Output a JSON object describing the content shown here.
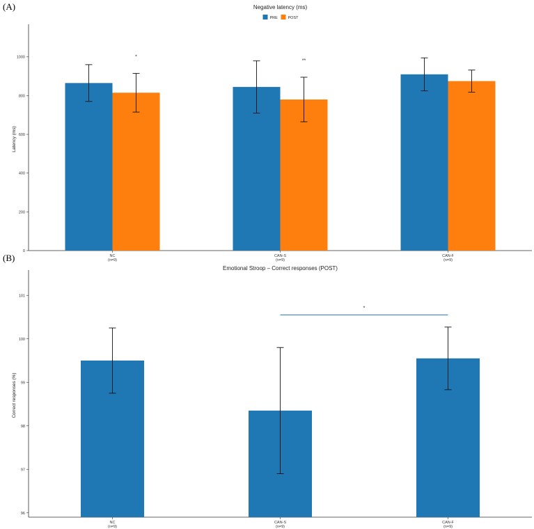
{
  "panel_a_label": "(A)",
  "panel_b_label": "(B)",
  "chart_data": [
    {
      "type": "bar",
      "title": "Negative latency (ms)",
      "xlabel": "",
      "ylabel": "Latency (ms)",
      "ylim": [
        0,
        1150
      ],
      "yticks": [
        0,
        200,
        400,
        600,
        800,
        1000
      ],
      "categories": [
        "NC\n(n=9)",
        "CAN-S\n(n=9)",
        "CAN-F\n(n=9)"
      ],
      "series": [
        {
          "name": "PRE",
          "color": "#1f77b4",
          "values": [
            865,
            845,
            910
          ],
          "error": [
            95,
            135,
            85
          ]
        },
        {
          "name": "POST",
          "color": "#ff7f0e",
          "values": [
            815,
            780,
            875
          ],
          "error": [
            100,
            115,
            57
          ]
        }
      ],
      "annotations": [
        {
          "category": 0,
          "series": "POST",
          "text": "*"
        },
        {
          "category": 1,
          "series": "POST",
          "text": "**"
        }
      ],
      "legend": "top-center",
      "grid": false
    },
    {
      "type": "bar",
      "title": "Emotional Stroop – Correct responses (POST)",
      "xlabel": "",
      "ylabel": "Correct responses (%)",
      "ylim": [
        95.9,
        101.5
      ],
      "yticks": [
        96,
        97,
        98,
        99,
        100,
        101
      ],
      "categories": [
        "NC\n(n=9)",
        "CAN-S\n(n=9)",
        "CAN-F\n(n=9)"
      ],
      "series": [
        {
          "color": "#1f77b4",
          "values": [
            99.5,
            98.35,
            99.55
          ],
          "error": [
            0.75,
            1.45,
            0.72
          ]
        }
      ],
      "significance": [
        {
          "from": 1,
          "to": 2,
          "text": "*",
          "y": 100.55,
          "color": "#1f77b4"
        }
      ],
      "grid": false
    }
  ]
}
